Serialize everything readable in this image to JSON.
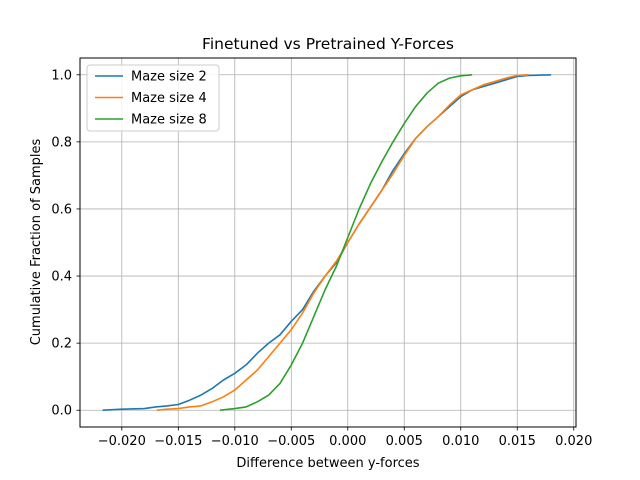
{
  "chart_data": {
    "type": "line",
    "title": "Finetuned vs Pretrained Y-Forces",
    "xlabel": "Difference between y-forces",
    "ylabel": "Cumulative Fraction of Samples",
    "xlim": [
      -0.0237,
      0.0202
    ],
    "ylim": [
      -0.05,
      1.05
    ],
    "xticks": [
      -0.02,
      -0.015,
      -0.01,
      -0.005,
      0.0,
      0.005,
      0.01,
      0.015,
      0.02
    ],
    "xtick_labels": [
      "−0.020",
      "−0.015",
      "−0.010",
      "−0.005",
      "0.000",
      "0.005",
      "0.010",
      "0.015",
      "0.020"
    ],
    "yticks": [
      0.0,
      0.2,
      0.4,
      0.6,
      0.8,
      1.0
    ],
    "ytick_labels": [
      "0.0",
      "0.2",
      "0.4",
      "0.6",
      "0.8",
      "1.0"
    ],
    "grid": true,
    "legend_position": "top-left",
    "series": [
      {
        "name": "Maze size 2",
        "color": "#1f77b4",
        "x": [
          -0.0217,
          -0.02,
          -0.018,
          -0.017,
          -0.016,
          -0.015,
          -0.014,
          -0.013,
          -0.012,
          -0.011,
          -0.01,
          -0.009,
          -0.008,
          -0.007,
          -0.006,
          -0.005,
          -0.004,
          -0.003,
          -0.002,
          -0.001,
          0.0,
          0.001,
          0.002,
          0.003,
          0.004,
          0.005,
          0.006,
          0.007,
          0.008,
          0.009,
          0.01,
          0.011,
          0.012,
          0.013,
          0.014,
          0.015,
          0.016,
          0.018
        ],
        "y": [
          0.0,
          0.003,
          0.005,
          0.01,
          0.013,
          0.017,
          0.03,
          0.045,
          0.065,
          0.09,
          0.11,
          0.135,
          0.17,
          0.2,
          0.225,
          0.265,
          0.3,
          0.355,
          0.4,
          0.44,
          0.5,
          0.555,
          0.605,
          0.655,
          0.715,
          0.765,
          0.81,
          0.845,
          0.875,
          0.905,
          0.935,
          0.955,
          0.965,
          0.975,
          0.985,
          0.995,
          0.998,
          1.0
        ]
      },
      {
        "name": "Maze size 4",
        "color": "#ff7f0e",
        "x": [
          -0.0169,
          -0.016,
          -0.015,
          -0.014,
          -0.013,
          -0.012,
          -0.011,
          -0.01,
          -0.009,
          -0.008,
          -0.007,
          -0.006,
          -0.005,
          -0.004,
          -0.003,
          -0.002,
          -0.001,
          0.0,
          0.001,
          0.002,
          0.003,
          0.004,
          0.005,
          0.006,
          0.007,
          0.008,
          0.009,
          0.01,
          0.011,
          0.012,
          0.013,
          0.014,
          0.015,
          0.016
        ],
        "y": [
          0.0,
          0.003,
          0.005,
          0.01,
          0.013,
          0.025,
          0.04,
          0.06,
          0.09,
          0.12,
          0.16,
          0.2,
          0.24,
          0.29,
          0.35,
          0.4,
          0.445,
          0.5,
          0.555,
          0.605,
          0.655,
          0.705,
          0.76,
          0.81,
          0.845,
          0.875,
          0.91,
          0.94,
          0.955,
          0.97,
          0.98,
          0.99,
          0.998,
          1.0
        ]
      },
      {
        "name": "Maze size 8",
        "color": "#2ca02c",
        "x": [
          -0.0113,
          -0.01,
          -0.009,
          -0.008,
          -0.007,
          -0.006,
          -0.005,
          -0.004,
          -0.003,
          -0.002,
          -0.001,
          0.0,
          0.001,
          0.002,
          0.003,
          0.004,
          0.005,
          0.006,
          0.007,
          0.008,
          0.009,
          0.01,
          0.011
        ],
        "y": [
          0.0,
          0.005,
          0.01,
          0.025,
          0.045,
          0.08,
          0.135,
          0.2,
          0.28,
          0.36,
          0.43,
          0.515,
          0.6,
          0.675,
          0.74,
          0.8,
          0.855,
          0.905,
          0.945,
          0.975,
          0.99,
          0.997,
          1.0
        ]
      }
    ]
  }
}
